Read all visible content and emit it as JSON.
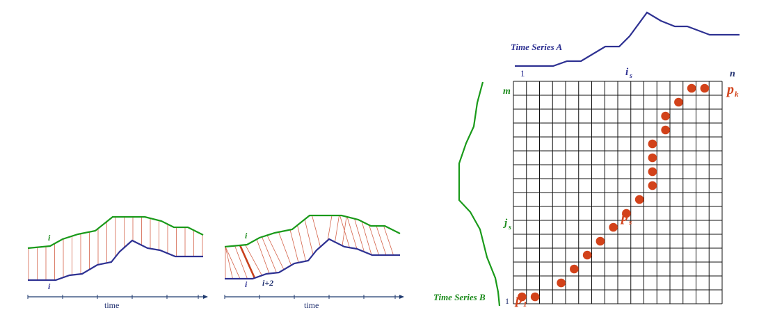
{
  "colors": {
    "series_a": "#2e3192",
    "series_b": "#1a9a1a",
    "warp_lines": "#d4634a",
    "warp_highlight": "#c8401c",
    "path_dots": "#d2421a",
    "grid": "#111111",
    "axis": "#1f3a6f"
  },
  "euclidean_panel": {
    "top_index_label": "i",
    "bottom_index_label": "i",
    "axis_label": "time"
  },
  "dtw_panel": {
    "top_index_label": "i",
    "bottom_index_label": "i",
    "bottom_offset_label": "i+2",
    "axis_label": "time"
  },
  "warping_matrix": {
    "series_a_label": "Time Series A",
    "series_b_label": "Time Series B",
    "col_start_label": "1",
    "col_mid_label": "i",
    "col_mid_sub": "s",
    "col_end_label": "n",
    "row_start_label": "1",
    "row_mid_label": "j",
    "row_mid_sub": "s",
    "row_end_label": "m",
    "path_start_label": "p",
    "path_start_sub": "1",
    "path_mid_label": "p",
    "path_mid_sub": "s",
    "path_end_label": "p",
    "path_end_sub": "k",
    "grid_columns": 16,
    "grid_rows": 16,
    "path_cells": [
      [
        0,
        15
      ],
      [
        1,
        15
      ],
      [
        3,
        14
      ],
      [
        4,
        13
      ],
      [
        5,
        12
      ],
      [
        6,
        11
      ],
      [
        7,
        10
      ],
      [
        8,
        9
      ],
      [
        9,
        8
      ],
      [
        10,
        7
      ],
      [
        10,
        6
      ],
      [
        10,
        5
      ],
      [
        10,
        4
      ],
      [
        11,
        3
      ],
      [
        11,
        2
      ],
      [
        12,
        1
      ],
      [
        13,
        0
      ],
      [
        14,
        0
      ]
    ]
  }
}
